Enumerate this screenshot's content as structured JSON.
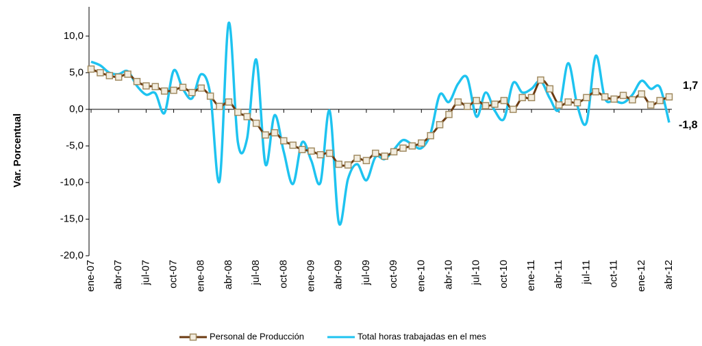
{
  "chart_data": {
    "type": "line",
    "y_label": "Var. Porcentual",
    "categories": [
      "ene-07",
      null,
      null,
      "abr-07",
      null,
      null,
      "jul-07",
      null,
      null,
      "oct-07",
      null,
      null,
      "ene-08",
      null,
      null,
      "abr-08",
      null,
      null,
      "jul-08",
      null,
      null,
      "oct-08",
      null,
      null,
      "ene-09",
      null,
      null,
      "abr-09",
      null,
      null,
      "jul-09",
      null,
      null,
      "oct-09",
      null,
      null,
      "ene-10",
      null,
      null,
      "abr-10",
      null,
      null,
      "jul-10",
      null,
      null,
      "oct-10",
      null,
      null,
      "ene-11",
      null,
      null,
      "abr-11",
      null,
      null,
      "jul-11",
      null,
      null,
      "oct-11",
      null,
      null,
      "ene-12",
      null,
      null,
      "abr-12"
    ],
    "series": [
      {
        "name": "Personal de Producción",
        "color": "#6b3a10",
        "marker": "square",
        "marker_color": "#a08a60",
        "values": [
          5.5,
          5.0,
          4.6,
          4.4,
          4.8,
          3.8,
          3.2,
          3.1,
          2.5,
          2.6,
          3.0,
          2.3,
          2.9,
          1.8,
          0.4,
          1.0,
          -0.4,
          -1.0,
          -1.9,
          -3.5,
          -3.2,
          -4.3,
          -4.9,
          -5.5,
          -5.7,
          -6.2,
          -6.0,
          -7.5,
          -7.6,
          -6.7,
          -7.0,
          -6.0,
          -6.4,
          -5.8,
          -5.3,
          -5.0,
          -4.6,
          -3.6,
          -2.1,
          -0.7,
          1.0,
          0.4,
          1.2,
          0.5,
          0.7,
          1.2,
          0.0,
          1.6,
          1.6,
          4.0,
          2.8,
          0.6,
          1.0,
          0.9,
          1.6,
          2.4,
          1.7,
          1.4,
          1.9,
          1.3,
          2.1,
          0.6,
          1.2,
          1.7
        ],
        "value_labels": [
          null,
          null,
          null,
          null,
          null,
          null,
          null,
          null,
          null,
          null,
          null,
          null,
          null,
          null,
          null,
          null,
          null,
          null,
          null,
          null,
          null,
          null,
          null,
          null,
          null,
          null,
          null,
          null,
          null,
          null,
          null,
          null,
          null,
          null,
          null,
          null,
          null,
          null,
          null,
          null,
          null,
          null,
          null,
          null,
          null,
          null,
          null,
          null,
          null,
          null,
          null,
          null,
          null,
          null,
          null,
          null,
          null,
          null,
          null,
          null,
          null,
          null,
          null,
          "1,7"
        ],
        "label_color": "#9e8a5a"
      },
      {
        "name": "Total horas trabajadas en el mes",
        "color": "#1ec3f0",
        "values": [
          6.5,
          6.0,
          5.0,
          4.8,
          5.2,
          3.2,
          2.0,
          2.2,
          -0.5,
          5.3,
          2.8,
          1.5,
          4.8,
          2.0,
          -9.8,
          11.8,
          -4.5,
          -4.0,
          6.8,
          -7.5,
          -0.8,
          -5.8,
          -10.2,
          -4.5,
          -7.0,
          -10.0,
          -0.2,
          -15.5,
          -9.5,
          -7.5,
          -9.7,
          -6.5,
          -6.8,
          -5.5,
          -4.2,
          -4.8,
          -5.3,
          -3.3,
          2.0,
          1.0,
          3.5,
          4.3,
          -1.0,
          2.3,
          -0.2,
          -1.3,
          3.6,
          2.3,
          2.8,
          3.9,
          1.5,
          0.0,
          6.3,
          0.5,
          -1.8,
          7.3,
          1.5,
          1.2,
          0.9,
          2.0,
          3.9,
          2.8,
          3.0,
          -1.8
        ],
        "value_labels": [
          null,
          null,
          null,
          null,
          null,
          null,
          null,
          null,
          null,
          null,
          null,
          null,
          null,
          null,
          null,
          null,
          null,
          null,
          null,
          null,
          null,
          null,
          null,
          null,
          null,
          null,
          null,
          null,
          null,
          null,
          null,
          null,
          null,
          null,
          null,
          null,
          null,
          null,
          null,
          null,
          null,
          null,
          null,
          null,
          null,
          null,
          null,
          null,
          null,
          null,
          null,
          null,
          null,
          null,
          null,
          null,
          null,
          null,
          null,
          null,
          null,
          null,
          null,
          "-1,8"
        ],
        "label_color": "#1ec3f0"
      }
    ],
    "ylim": [
      -20,
      14
    ],
    "yticks": [
      {
        "value": -20,
        "label": "-20,0"
      },
      {
        "value": -15,
        "label": "-15,0"
      },
      {
        "value": -10,
        "label": "-10,0"
      },
      {
        "value": -5,
        "label": "-5,0"
      },
      {
        "value": 0,
        "label": "0,0"
      },
      {
        "value": 5,
        "label": "5,0"
      },
      {
        "value": 10,
        "label": "10,0"
      }
    ],
    "grid": false,
    "legend": "bottom",
    "smooth": true
  }
}
